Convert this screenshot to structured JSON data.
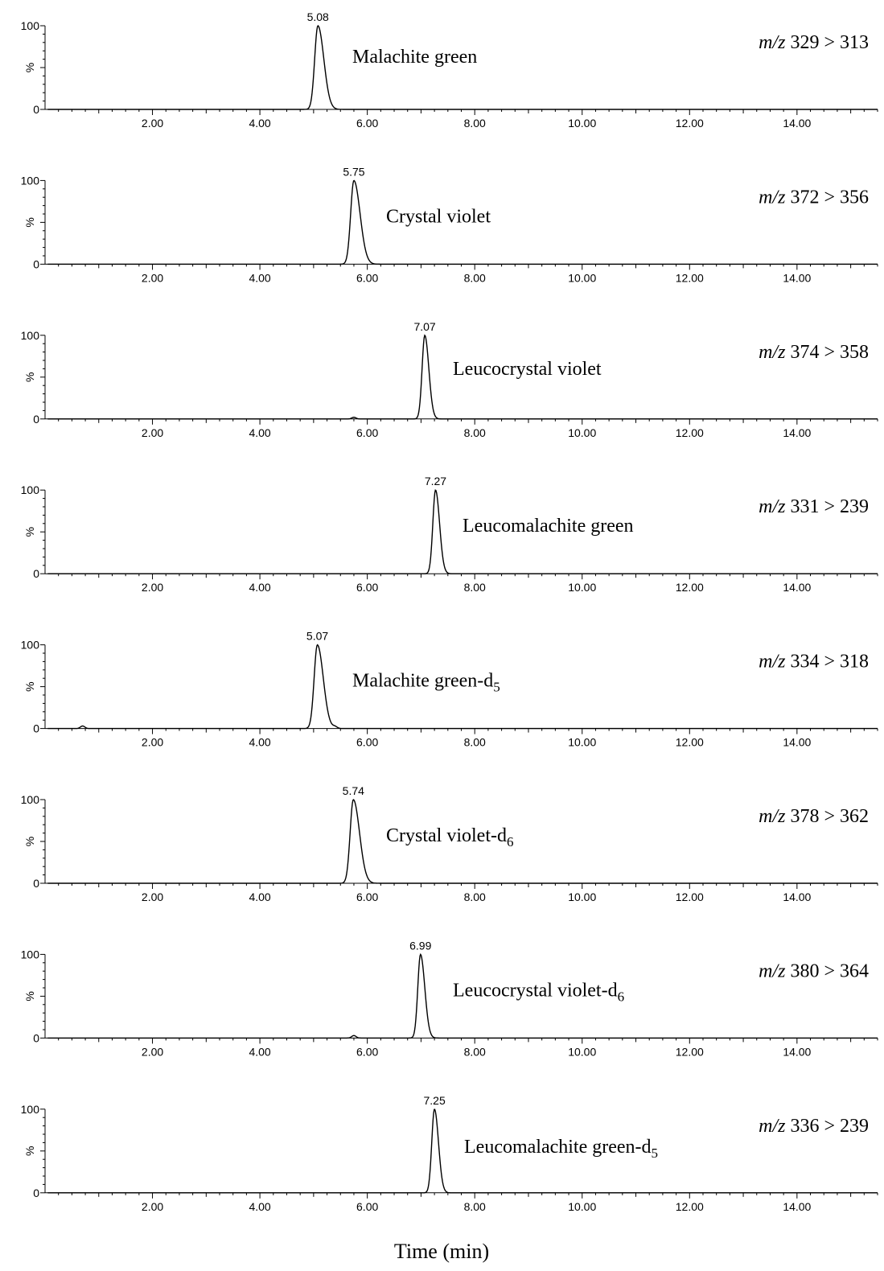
{
  "xlabel": "Time (min)",
  "chart_data": [
    {
      "type": "line",
      "name": "Malachite green",
      "subscript": "",
      "transition": "329 > 313",
      "mz_prefix": "m/z",
      "ylabel": "%",
      "ylim": [
        0,
        100
      ],
      "xlim": [
        0,
        15.5
      ],
      "ticks": [
        "2.00",
        "4.00",
        "6.00",
        "8.00",
        "10.00",
        "12.00",
        "14.00"
      ],
      "peak": {
        "rt": 5.08,
        "label": "5.08",
        "height": 100,
        "width": 0.06,
        "tail": 0.1
      },
      "minor_peaks": [],
      "line_color": "#000000"
    },
    {
      "type": "line",
      "name": "Crystal violet",
      "subscript": "",
      "transition": "372 > 356",
      "mz_prefix": "m/z",
      "ylabel": "%",
      "ylim": [
        0,
        100
      ],
      "xlim": [
        0,
        15.5
      ],
      "ticks": [
        "2.00",
        "4.00",
        "6.00",
        "8.00",
        "10.00",
        "12.00",
        "14.00"
      ],
      "peak": {
        "rt": 5.75,
        "label": "5.75",
        "height": 100,
        "width": 0.06,
        "tail": 0.11
      },
      "minor_peaks": [],
      "line_color": "#000000"
    },
    {
      "type": "line",
      "name": "Leucocrystal violet",
      "subscript": "",
      "transition": "374 > 358",
      "mz_prefix": "m/z",
      "ylabel": "%",
      "ylim": [
        0,
        100
      ],
      "xlim": [
        0,
        15.5
      ],
      "ticks": [
        "2.00",
        "4.00",
        "6.00",
        "8.00",
        "10.00",
        "12.00",
        "14.00"
      ],
      "peak": {
        "rt": 7.07,
        "label": "7.07",
        "height": 100,
        "width": 0.05,
        "tail": 0.05
      },
      "minor_peaks": [
        {
          "rt": 5.75,
          "height": 2
        }
      ],
      "line_color": "#000000"
    },
    {
      "type": "line",
      "name": "Leucomalachite green",
      "subscript": "",
      "transition": "331 > 239",
      "mz_prefix": "m/z",
      "ylabel": "%",
      "ylim": [
        0,
        100
      ],
      "xlim": [
        0,
        15.5
      ],
      "ticks": [
        "2.00",
        "4.00",
        "6.00",
        "8.00",
        "10.00",
        "12.00",
        "14.00"
      ],
      "peak": {
        "rt": 7.27,
        "label": "7.27",
        "height": 100,
        "width": 0.05,
        "tail": 0.05
      },
      "minor_peaks": [],
      "line_color": "#000000"
    },
    {
      "type": "line",
      "name": "Malachite green-d",
      "subscript": "5",
      "transition": "334 > 318",
      "mz_prefix": "m/z",
      "ylabel": "%",
      "ylim": [
        0,
        100
      ],
      "xlim": [
        0,
        15.5
      ],
      "ticks": [
        "2.00",
        "4.00",
        "6.00",
        "8.00",
        "10.00",
        "12.00",
        "14.00"
      ],
      "peak": {
        "rt": 5.07,
        "label": "5.07",
        "height": 100,
        "width": 0.06,
        "tail": 0.1
      },
      "minor_peaks": [
        {
          "rt": 0.7,
          "height": 3
        },
        {
          "rt": 5.4,
          "height": 2
        }
      ],
      "line_color": "#000000"
    },
    {
      "type": "line",
      "name": "Crystal violet-d",
      "subscript": "6",
      "transition": "378 > 362",
      "mz_prefix": "m/z",
      "ylabel": "%",
      "ylim": [
        0,
        100
      ],
      "xlim": [
        0,
        15.5
      ],
      "ticks": [
        "2.00",
        "4.00",
        "6.00",
        "8.00",
        "10.00",
        "12.00",
        "14.00"
      ],
      "peak": {
        "rt": 5.74,
        "label": "5.74",
        "height": 100,
        "width": 0.06,
        "tail": 0.11
      },
      "minor_peaks": [],
      "line_color": "#000000"
    },
    {
      "type": "line",
      "name": "Leucocrystal violet-d",
      "subscript": "6",
      "transition": "380 > 364",
      "mz_prefix": "m/z",
      "ylabel": "%",
      "ylim": [
        0,
        100
      ],
      "xlim": [
        0,
        15.5
      ],
      "ticks": [
        "2.00",
        "4.00",
        "6.00",
        "8.00",
        "10.00",
        "12.00",
        "14.00"
      ],
      "peak": {
        "rt": 6.99,
        "label": "6.99",
        "height": 100,
        "width": 0.05,
        "tail": 0.06
      },
      "minor_peaks": [
        {
          "rt": 5.75,
          "height": 3
        }
      ],
      "line_color": "#000000"
    },
    {
      "type": "line",
      "name": "Leucomalachite green-d",
      "subscript": "5",
      "transition": "336 > 239",
      "mz_prefix": "m/z",
      "ylabel": "%",
      "ylim": [
        0,
        100
      ],
      "xlim": [
        0,
        15.5
      ],
      "ticks": [
        "2.00",
        "4.00",
        "6.00",
        "8.00",
        "10.00",
        "12.00",
        "14.00"
      ],
      "peak": {
        "rt": 7.25,
        "label": "7.25",
        "height": 100,
        "width": 0.05,
        "tail": 0.05
      },
      "minor_peaks": [],
      "line_color": "#000000"
    }
  ]
}
